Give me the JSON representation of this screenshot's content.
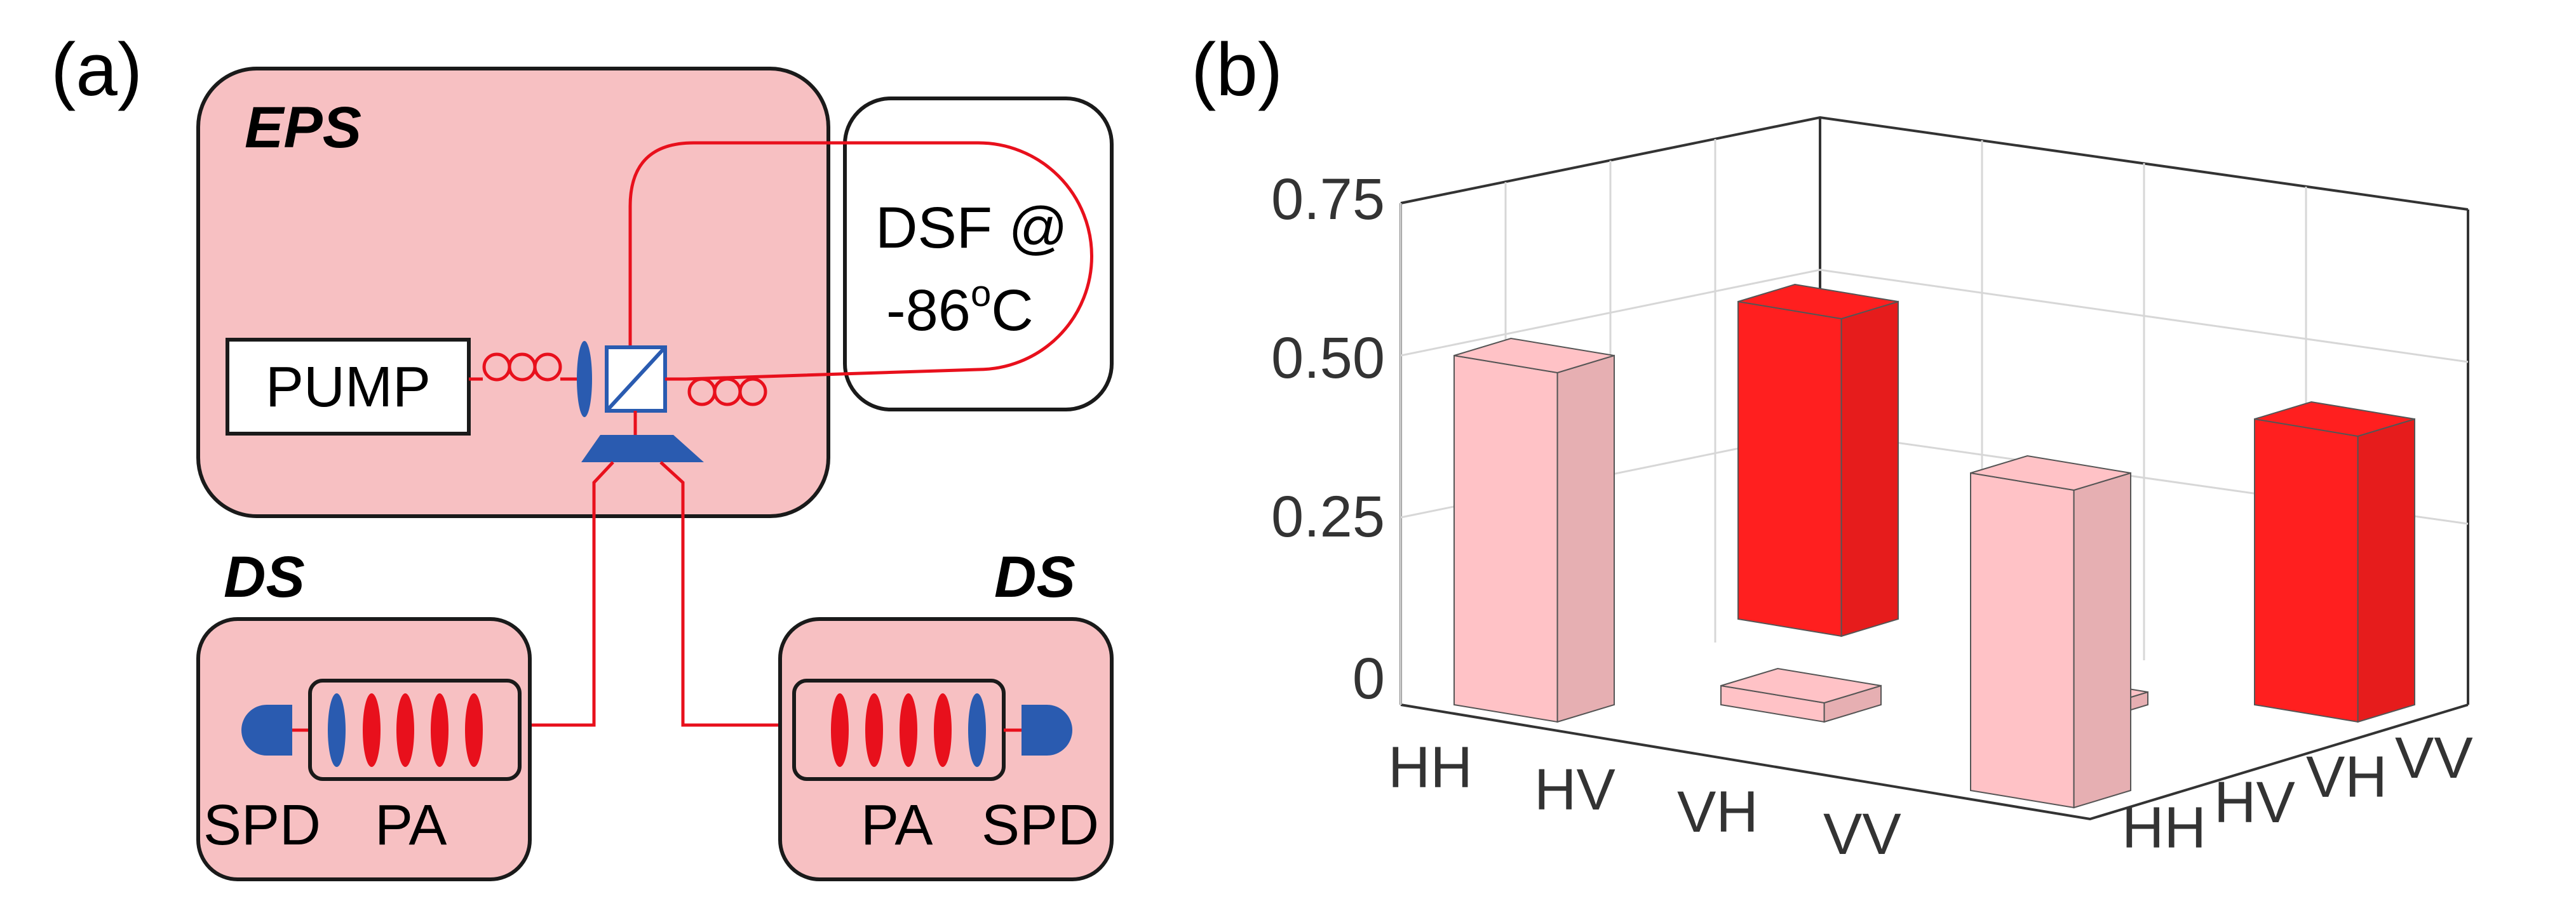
{
  "panel_a": {
    "label": "(a)",
    "eps_label": "EPS",
    "pump_label": "PUMP",
    "dsf_line1": "DSF @",
    "dsf_line2_prefix": "-86",
    "dsf_line2_sup": "o",
    "dsf_line2_suffix": "C",
    "ds_left_label": "DS",
    "ds_right_label": "DS",
    "left_spd": "SPD",
    "left_pa": "PA",
    "right_pa": "PA",
    "right_spd": "SPD"
  },
  "panel_b": {
    "label": "(b)"
  },
  "colors": {
    "box_fill": "#f7c0c2",
    "fiber": "#e8101c",
    "blue": "#2a5bb0",
    "bar_light": "#ffc2c6",
    "bar_red": "#ff1f1f"
  },
  "chart_data": {
    "type": "bar3d",
    "x_categories": [
      "HH",
      "HV",
      "VH",
      "VV"
    ],
    "y_categories": [
      "HH",
      "HV",
      "VH",
      "VV"
    ],
    "zlim": [
      0,
      0.75
    ],
    "z_ticks": [
      "0",
      "0.25",
      "0.50",
      "0.75"
    ],
    "grid": true,
    "bars": [
      {
        "x": "HH",
        "y": "HH",
        "value": 0.55,
        "sign": "positive"
      },
      {
        "x": "HH",
        "y": "VV",
        "value": 0.5,
        "sign": "negative"
      },
      {
        "x": "VV",
        "y": "HH",
        "value": 0.5,
        "sign": "positive"
      },
      {
        "x": "VV",
        "y": "VV",
        "value": 0.45,
        "sign": "negative"
      },
      {
        "x": "HV",
        "y": "HV",
        "value": 0.03,
        "sign": "positive"
      },
      {
        "x": "VH",
        "y": "VH",
        "value": 0.02,
        "sign": "positive"
      }
    ]
  }
}
